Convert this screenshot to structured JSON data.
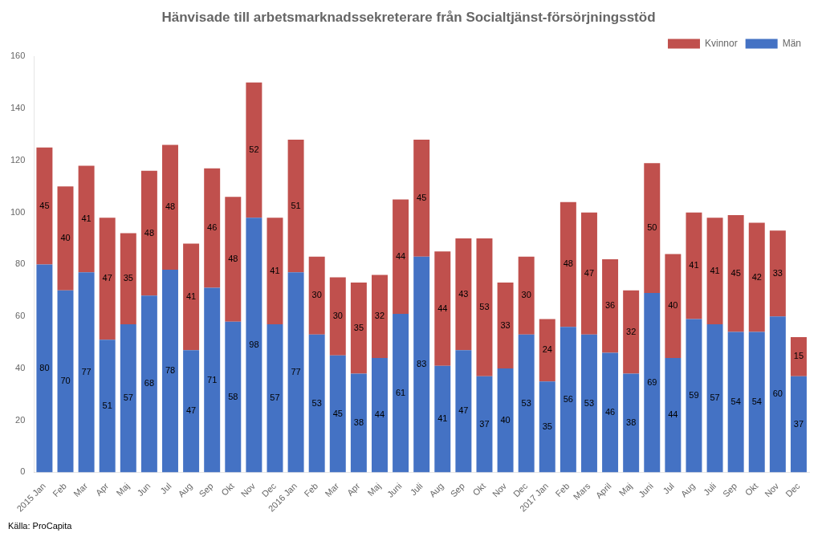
{
  "chart_data": {
    "type": "bar",
    "title": "Hänvisade till arbetsmarknadssekreterare från Socialtjänst-försörjningsstöd",
    "annotations": [
      "Källa: ProCapita"
    ],
    "categories": [
      "2015 Jan",
      "Feb",
      "Mar",
      "Apr",
      "Maj",
      "Jun",
      "Jul",
      "Aug",
      "Sep",
      "Okt",
      "Nov",
      "Dec",
      "2016 Jan",
      "Feb",
      "Mar",
      "Apr",
      "Maj",
      "Juni",
      "Juli",
      "Aug",
      "Sep",
      "Okt",
      "Nov",
      "Dec",
      "2017 Jan",
      "Feb",
      "Mars",
      "April",
      "Maj",
      "Juni",
      "Jul",
      "Aug",
      "Juli",
      "Sep",
      "Okt",
      "Nov",
      "Dec"
    ],
    "series": [
      {
        "name": "Män",
        "color": "#4472C4",
        "values": [
          80,
          70,
          77,
          51,
          57,
          68,
          78,
          47,
          71,
          58,
          98,
          57,
          77,
          53,
          45,
          38,
          44,
          61,
          83,
          41,
          47,
          37,
          40,
          53,
          35,
          56,
          53,
          46,
          38,
          69,
          44,
          59,
          57,
          54,
          54,
          60,
          37
        ]
      },
      {
        "name": "Kvinnor",
        "color": "#C0504D",
        "values": [
          45,
          40,
          41,
          47,
          35,
          48,
          48,
          41,
          46,
          48,
          52,
          41,
          51,
          30,
          30,
          35,
          32,
          44,
          45,
          44,
          43,
          53,
          33,
          30,
          24,
          48,
          47,
          36,
          32,
          50,
          40,
          41,
          41,
          45,
          42,
          33,
          15
        ]
      }
    ],
    "stacked": true,
    "data_labels": true,
    "ylim": [
      0,
      160
    ],
    "yticks": [
      0,
      20,
      40,
      60,
      80,
      100,
      120,
      140,
      160
    ],
    "grid": false,
    "legend": "upper right"
  }
}
